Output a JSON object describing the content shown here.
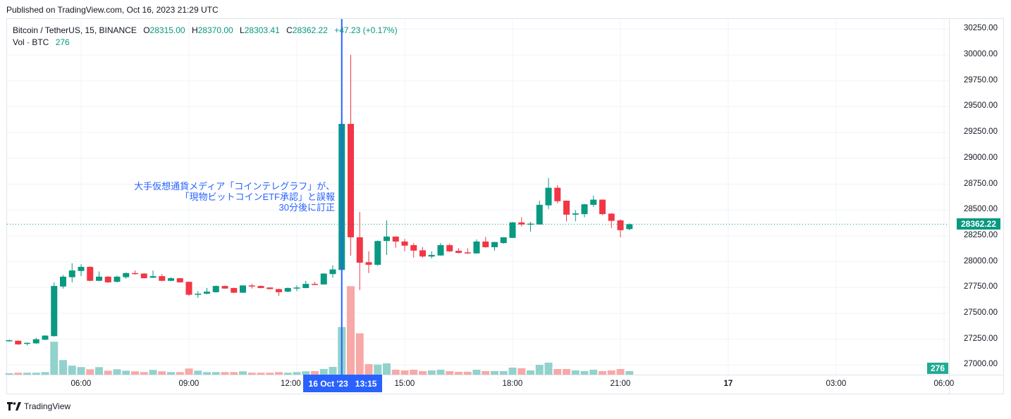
{
  "header": {
    "published": "Published on TradingView.com, Oct 16, 2023 21:29 UTC"
  },
  "legend": {
    "symbol": "Bitcoin / TetherUS, 15, BINANCE",
    "open_label": "O",
    "open": "28315.00",
    "high_label": "H",
    "high": "28370.00",
    "low_label": "L",
    "low": "28303.41",
    "close_label": "C",
    "close": "28362.22",
    "change": "+47.23 (+0.17%)",
    "volume_label": "Vol · BTC",
    "volume": "276"
  },
  "annotation": {
    "lines": [
      "大手仮想通貨メディア「コインテレグラフ」が、",
      "「現物ビットコインETF承認」と誤報",
      "30分後に訂正"
    ]
  },
  "price_axis": {
    "ticks": [
      "30250.00",
      "30000.00",
      "29750.00",
      "29500.00",
      "29250.00",
      "29000.00",
      "28750.00",
      "28500.00",
      "28250.00",
      "28000.00",
      "27750.00",
      "27500.00",
      "27250.00",
      "27000.00"
    ],
    "last_price": "28362.22",
    "last_volume": "276"
  },
  "time_axis": {
    "ticks": [
      "06:00",
      "09:00",
      "12:00",
      "15:00",
      "18:00",
      "21:00",
      "17",
      "03:00",
      "06:00"
    ],
    "crosshair_date": "16 Oct '23",
    "crosshair_time": "13:15"
  },
  "colors": {
    "up": "#089981",
    "down": "#f23645",
    "up_volume": "#92d2cc",
    "down_volume": "#f7a9a7",
    "crosshair": "#2962ff"
  },
  "chart_data": {
    "type": "candlestick",
    "interval": "15",
    "ylim": [
      27000,
      30250
    ],
    "columns": [
      "open",
      "high",
      "low",
      "close",
      "volume"
    ],
    "candles": [
      [
        27235,
        27245,
        27228,
        27240,
        110
      ],
      [
        27235,
        27240,
        27195,
        27200,
        150
      ],
      [
        27205,
        27220,
        27190,
        27215,
        150
      ],
      [
        27210,
        27265,
        27205,
        27250,
        150
      ],
      [
        27245,
        27290,
        27240,
        27285,
        200
      ],
      [
        27280,
        27800,
        27275,
        27765,
        2570
      ],
      [
        27760,
        27870,
        27740,
        27855,
        1140
      ],
      [
        27850,
        27985,
        27800,
        27915,
        700
      ],
      [
        27910,
        27975,
        27860,
        27950,
        590
      ],
      [
        27950,
        27955,
        27810,
        27815,
        420
      ],
      [
        27815,
        27905,
        27810,
        27855,
        590
      ],
      [
        27855,
        27860,
        27795,
        27800,
        310
      ],
      [
        27805,
        27865,
        27800,
        27855,
        420
      ],
      [
        27850,
        27895,
        27835,
        27890,
        310
      ],
      [
        27890,
        27915,
        27875,
        27880,
        260
      ],
      [
        27885,
        27890,
        27838,
        27840,
        200
      ],
      [
        27845,
        27915,
        27842,
        27860,
        370
      ],
      [
        27860,
        27880,
        27810,
        27815,
        260
      ],
      [
        27815,
        27850,
        27812,
        27840,
        200
      ],
      [
        27840,
        27842,
        27798,
        27800,
        200
      ],
      [
        27805,
        27808,
        27670,
        27680,
        480
      ],
      [
        27685,
        27715,
        27650,
        27690,
        310
      ],
      [
        27690,
        27745,
        27685,
        27710,
        200
      ],
      [
        27705,
        27770,
        27700,
        27765,
        200
      ],
      [
        27765,
        27768,
        27738,
        27740,
        200
      ],
      [
        27745,
        27748,
        27695,
        27700,
        200
      ],
      [
        27700,
        27772,
        27698,
        27770,
        260
      ],
      [
        27770,
        27785,
        27740,
        27760,
        150
      ],
      [
        27765,
        27770,
        27742,
        27745,
        150
      ],
      [
        27750,
        27752,
        27732,
        27735,
        150
      ],
      [
        27735,
        27738,
        27670,
        27705,
        200
      ],
      [
        27710,
        27750,
        27705,
        27745,
        150
      ],
      [
        27740,
        27770,
        27715,
        27750,
        200
      ],
      [
        27745,
        27815,
        27742,
        27785,
        260
      ],
      [
        27785,
        27805,
        27775,
        27780,
        275
      ],
      [
        27780,
        27888,
        27778,
        27885,
        440
      ],
      [
        27880,
        27965,
        27845,
        27925,
        605
      ],
      [
        27920,
        29340,
        27915,
        29333,
        3720
      ],
      [
        29333,
        30000,
        28059,
        28236,
        6910
      ],
      [
        28236,
        28481,
        27725,
        27990,
        3230
      ],
      [
        27995,
        28100,
        27890,
        27970,
        820
      ],
      [
        27970,
        28205,
        27960,
        28200,
        790
      ],
      [
        28200,
        28400,
        28065,
        28243,
        880
      ],
      [
        28243,
        28245,
        28135,
        28195,
        385
      ],
      [
        28195,
        28220,
        28100,
        28155,
        330
      ],
      [
        28160,
        28180,
        28040,
        28107,
        385
      ],
      [
        28110,
        28140,
        28040,
        28050,
        275
      ],
      [
        28050,
        28100,
        28030,
        28065,
        330
      ],
      [
        28060,
        28180,
        28058,
        28160,
        385
      ],
      [
        28160,
        28175,
        28095,
        28100,
        275
      ],
      [
        28105,
        28130,
        28080,
        28085,
        220
      ],
      [
        28090,
        28130,
        28075,
        28080,
        220
      ],
      [
        28080,
        28215,
        28078,
        28195,
        385
      ],
      [
        28195,
        28240,
        28135,
        28140,
        275
      ],
      [
        28140,
        28192,
        28105,
        28190,
        275
      ],
      [
        28180,
        28238,
        28175,
        28236,
        275
      ],
      [
        28230,
        28385,
        28228,
        28380,
        550
      ],
      [
        28380,
        28430,
        28340,
        28360,
        500
      ],
      [
        28362,
        28385,
        28290,
        28368,
        330
      ],
      [
        28360,
        28590,
        28358,
        28550,
        770
      ],
      [
        28545,
        28810,
        28510,
        28715,
        935
      ],
      [
        28715,
        28740,
        28565,
        28585,
        440
      ],
      [
        28590,
        28592,
        28390,
        28455,
        440
      ],
      [
        28455,
        28500,
        28390,
        28467,
        330
      ],
      [
        28460,
        28560,
        28430,
        28555,
        275
      ],
      [
        28550,
        28640,
        28530,
        28600,
        385
      ],
      [
        28600,
        28602,
        28450,
        28460,
        275
      ],
      [
        28465,
        28470,
        28325,
        28395,
        330
      ],
      [
        28400,
        28410,
        28235,
        28305,
        440
      ],
      [
        28315,
        28370,
        28303.41,
        28362.22,
        276
      ]
    ]
  }
}
